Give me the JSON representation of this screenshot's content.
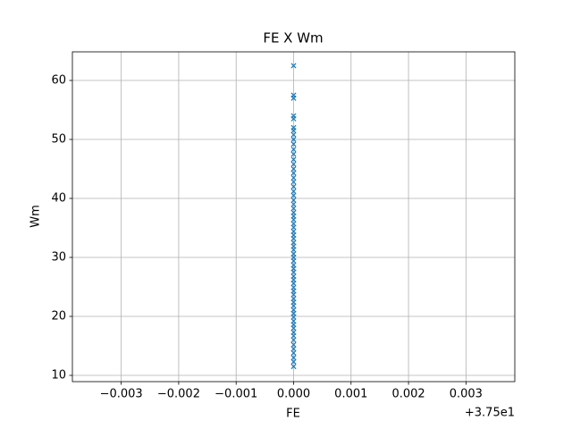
{
  "chart_data": {
    "type": "scatter",
    "title": "FE X Wm",
    "x_label": "FE",
    "y_label": "Wm",
    "x_offset_label": "+3.75e1",
    "series": [
      {
        "color": "#1f77b4",
        "x": [
          37.5,
          37.5,
          37.5,
          37.5,
          37.5,
          37.5,
          37.5,
          37.5,
          37.5,
          37.5,
          37.5,
          37.5,
          37.5,
          37.5,
          37.5,
          37.5,
          37.5,
          37.5,
          37.5,
          37.5,
          37.5,
          37.5,
          37.5,
          37.5,
          37.5,
          37.5,
          37.5,
          37.5,
          37.5,
          37.5,
          37.5,
          37.5,
          37.5,
          37.5,
          37.5,
          37.5,
          37.5,
          37.5,
          37.5,
          37.5,
          37.5,
          37.5,
          37.5,
          37.5,
          37.5,
          37.5,
          37.5,
          37.5,
          37.5,
          37.5,
          37.5,
          37.5,
          37.5,
          37.5,
          37.5,
          37.5,
          37.5,
          37.5,
          37.5,
          37.5,
          37.5,
          37.5,
          37.5,
          37.5,
          37.5
        ],
        "values": [
          11.5,
          12.3,
          13,
          13.8,
          14.5,
          15.2,
          16,
          16.7,
          17.3,
          18,
          18.6,
          19.2,
          19.9,
          20.5,
          21.1,
          21.8,
          22.4,
          23,
          23.7,
          24.3,
          24.9,
          25.6,
          26.2,
          26.8,
          27.5,
          28.1,
          28.7,
          29.4,
          30,
          30.6,
          31.3,
          31.9,
          32.5,
          33.2,
          33.8,
          34.4,
          35.1,
          35.7,
          36.4,
          37,
          37.6,
          38.3,
          39,
          39.7,
          40.5,
          41.2,
          42,
          42.8,
          43.5,
          44.3,
          45,
          45.8,
          46.6,
          47.5,
          48.3,
          49.2,
          50,
          50.8,
          51.5,
          52,
          53.5,
          54,
          57,
          57.5,
          62.5
        ]
      }
    ],
    "xlim": [
      37.49615,
      37.50385
    ],
    "xticks": [
      {
        "value": 37.497,
        "label": "−0.003"
      },
      {
        "value": 37.498,
        "label": "−0.002"
      },
      {
        "value": 37.499,
        "label": "−0.001"
      },
      {
        "value": 37.5,
        "label": "0.000"
      },
      {
        "value": 37.501,
        "label": "0.001"
      },
      {
        "value": 37.502,
        "label": "0.002"
      },
      {
        "value": 37.503,
        "label": "0.003"
      }
    ],
    "ylim": [
      8.94,
      64.85
    ],
    "yticks": [
      10,
      20,
      30,
      40,
      50,
      60
    ],
    "grid": true
  }
}
